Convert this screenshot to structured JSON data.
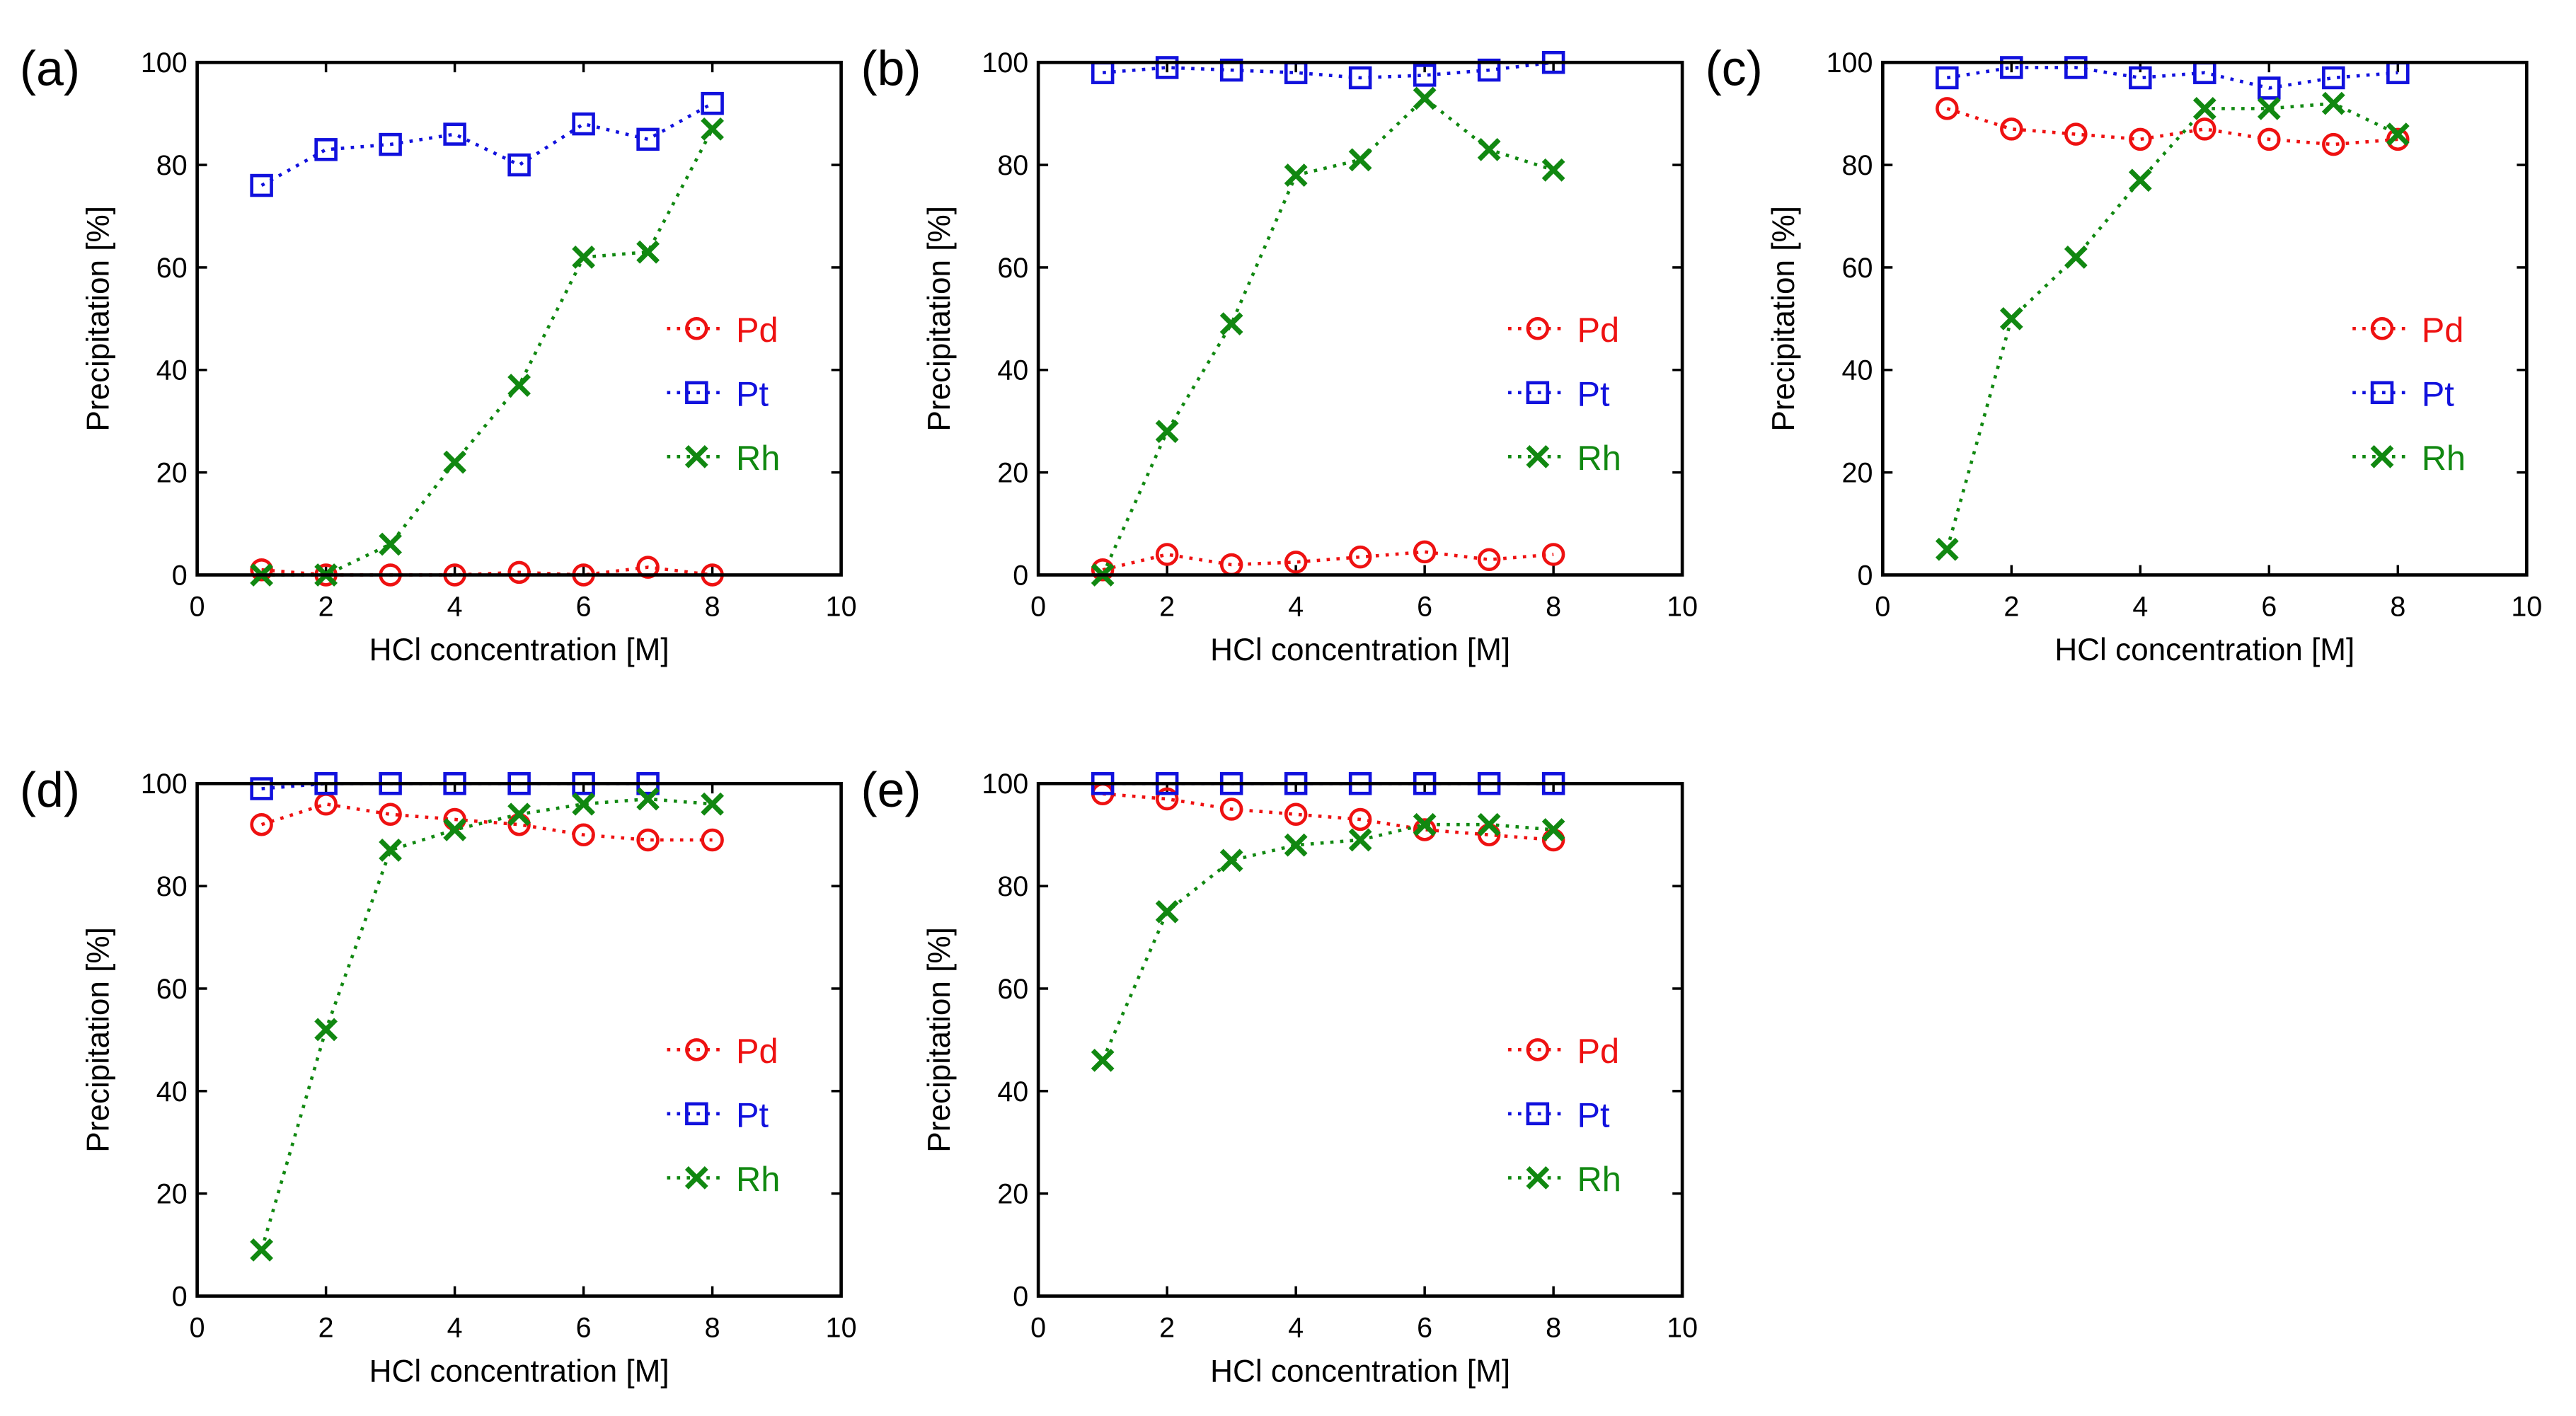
{
  "chart_data": [
    {
      "type": "line",
      "panel": "(a)",
      "x_label": "HCl concentration [M]",
      "y_label": "Precipitation [%]",
      "x": [
        1,
        2,
        3,
        4,
        5,
        6,
        7,
        8
      ],
      "xlim": [
        0,
        10
      ],
      "xticks": [
        0,
        2,
        4,
        6,
        8,
        10
      ],
      "ylim": [
        0,
        100
      ],
      "yticks": [
        0,
        20,
        40,
        60,
        80,
        100
      ],
      "legend": "right",
      "series": [
        {
          "name": "Pd",
          "color": "#ee1111",
          "marker": "circle",
          "values": [
            1,
            0,
            0,
            0,
            0.5,
            0,
            1.5,
            0
          ]
        },
        {
          "name": "Pt",
          "color": "#1111dd",
          "marker": "square",
          "values": [
            76,
            83,
            84,
            86,
            80,
            88,
            85,
            92
          ]
        },
        {
          "name": "Rh",
          "color": "#118811",
          "marker": "cross",
          "values": [
            0,
            0,
            6,
            22,
            37,
            62,
            63,
            87
          ]
        }
      ]
    },
    {
      "type": "line",
      "panel": "(b)",
      "x_label": "HCl concentration [M]",
      "y_label": "Precipitation [%]",
      "x": [
        1,
        2,
        3,
        4,
        5,
        6,
        7,
        8
      ],
      "xlim": [
        0,
        10
      ],
      "xticks": [
        0,
        2,
        4,
        6,
        8,
        10
      ],
      "ylim": [
        0,
        100
      ],
      "yticks": [
        0,
        20,
        40,
        60,
        80,
        100
      ],
      "legend": "right",
      "series": [
        {
          "name": "Pd",
          "color": "#ee1111",
          "marker": "circle",
          "values": [
            1,
            4,
            2,
            2.5,
            3.5,
            4.5,
            3,
            4
          ]
        },
        {
          "name": "Pt",
          "color": "#1111dd",
          "marker": "square",
          "values": [
            98,
            99,
            98.5,
            98,
            97,
            97.5,
            98.5,
            100
          ]
        },
        {
          "name": "Rh",
          "color": "#118811",
          "marker": "cross",
          "values": [
            0,
            28,
            49,
            78,
            81,
            93,
            83,
            79
          ]
        }
      ]
    },
    {
      "type": "line",
      "panel": "(c)",
      "x_label": "HCl concentration [M]",
      "y_label": "Precipitation [%]",
      "x": [
        1,
        2,
        3,
        4,
        5,
        6,
        7,
        8
      ],
      "xlim": [
        0,
        10
      ],
      "xticks": [
        0,
        2,
        4,
        6,
        8,
        10
      ],
      "ylim": [
        0,
        100
      ],
      "yticks": [
        0,
        20,
        40,
        60,
        80,
        100
      ],
      "legend": "right",
      "series": [
        {
          "name": "Pd",
          "color": "#ee1111",
          "marker": "circle",
          "values": [
            91,
            87,
            86,
            85,
            87,
            85,
            84,
            85
          ]
        },
        {
          "name": "Pt",
          "color": "#1111dd",
          "marker": "square",
          "values": [
            97,
            99,
            99,
            97,
            98,
            95,
            97,
            98
          ]
        },
        {
          "name": "Rh",
          "color": "#118811",
          "marker": "cross",
          "values": [
            5,
            50,
            62,
            77,
            91,
            91,
            92,
            86
          ]
        }
      ]
    },
    {
      "type": "line",
      "panel": "(d)",
      "x_label": "HCl concentration [M]",
      "y_label": "Precipitation [%]",
      "x": [
        1,
        2,
        3,
        4,
        5,
        6,
        7,
        8
      ],
      "xlim": [
        0,
        10
      ],
      "xticks": [
        0,
        2,
        4,
        6,
        8,
        10
      ],
      "ylim": [
        0,
        100
      ],
      "yticks": [
        0,
        20,
        40,
        60,
        80,
        100
      ],
      "legend": "right",
      "series": [
        {
          "name": "Pd",
          "color": "#ee1111",
          "marker": "circle",
          "values": [
            92,
            96,
            94,
            93,
            92,
            90,
            89,
            89
          ]
        },
        {
          "name": "Pt",
          "color": "#1111dd",
          "marker": "square",
          "values": [
            99,
            100,
            100,
            100,
            100,
            100,
            100,
            null
          ]
        },
        {
          "name": "Rh",
          "color": "#118811",
          "marker": "cross",
          "values": [
            9,
            52,
            87,
            91,
            94,
            96,
            97,
            96
          ]
        }
      ]
    },
    {
      "type": "line",
      "panel": "(e)",
      "x_label": "HCl concentration [M]",
      "y_label": "Precipitation [%]",
      "x": [
        1,
        2,
        3,
        4,
        5,
        6,
        7,
        8
      ],
      "xlim": [
        0,
        10
      ],
      "xticks": [
        0,
        2,
        4,
        6,
        8,
        10
      ],
      "ylim": [
        0,
        100
      ],
      "yticks": [
        0,
        20,
        40,
        60,
        80,
        100
      ],
      "legend": "right",
      "series": [
        {
          "name": "Pd",
          "color": "#ee1111",
          "marker": "circle",
          "values": [
            98,
            97,
            95,
            94,
            93,
            91,
            90,
            89
          ]
        },
        {
          "name": "Pt",
          "color": "#1111dd",
          "marker": "square",
          "values": [
            100,
            100,
            100,
            100,
            100,
            100,
            100,
            100
          ]
        },
        {
          "name": "Rh",
          "color": "#118811",
          "marker": "cross",
          "values": [
            46,
            75,
            85,
            88,
            89,
            92,
            92,
            91
          ]
        }
      ]
    }
  ]
}
